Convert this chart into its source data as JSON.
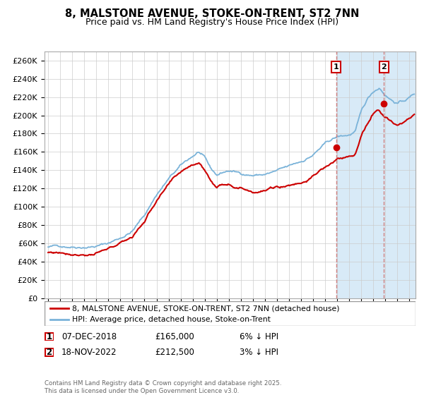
{
  "title": "8, MALSTONE AVENUE, STOKE-ON-TRENT, ST2 7NN",
  "subtitle": "Price paid vs. HM Land Registry's House Price Index (HPI)",
  "ylim": [
    0,
    270000
  ],
  "yticks": [
    0,
    20000,
    40000,
    60000,
    80000,
    100000,
    120000,
    140000,
    160000,
    180000,
    200000,
    220000,
    240000,
    260000
  ],
  "ytick_labels": [
    "£0",
    "£20K",
    "£40K",
    "£60K",
    "£80K",
    "£100K",
    "£120K",
    "£140K",
    "£160K",
    "£180K",
    "£200K",
    "£220K",
    "£240K",
    "£260K"
  ],
  "hpi_color": "#7ab3d9",
  "price_color": "#cc0000",
  "vline_color": "#d08080",
  "shade_color": "#d8eaf7",
  "transaction1_date": 2018.92,
  "transaction1_price": 165000,
  "transaction2_date": 2022.88,
  "transaction2_price": 212500,
  "legend_label1": "8, MALSTONE AVENUE, STOKE-ON-TRENT, ST2 7NN (detached house)",
  "legend_label2": "HPI: Average price, detached house, Stoke-on-Trent",
  "table_row1": [
    "1",
    "07-DEC-2018",
    "£165,000",
    "6% ↓ HPI"
  ],
  "table_row2": [
    "2",
    "18-NOV-2022",
    "£212,500",
    "3% ↓ HPI"
  ],
  "copyright_text": "Contains HM Land Registry data © Crown copyright and database right 2025.\nThis data is licensed under the Open Government Licence v3.0.",
  "shade_start": 2018.92,
  "shade_end": 2025.5,
  "xmin": 1994.7,
  "xmax": 2025.5
}
